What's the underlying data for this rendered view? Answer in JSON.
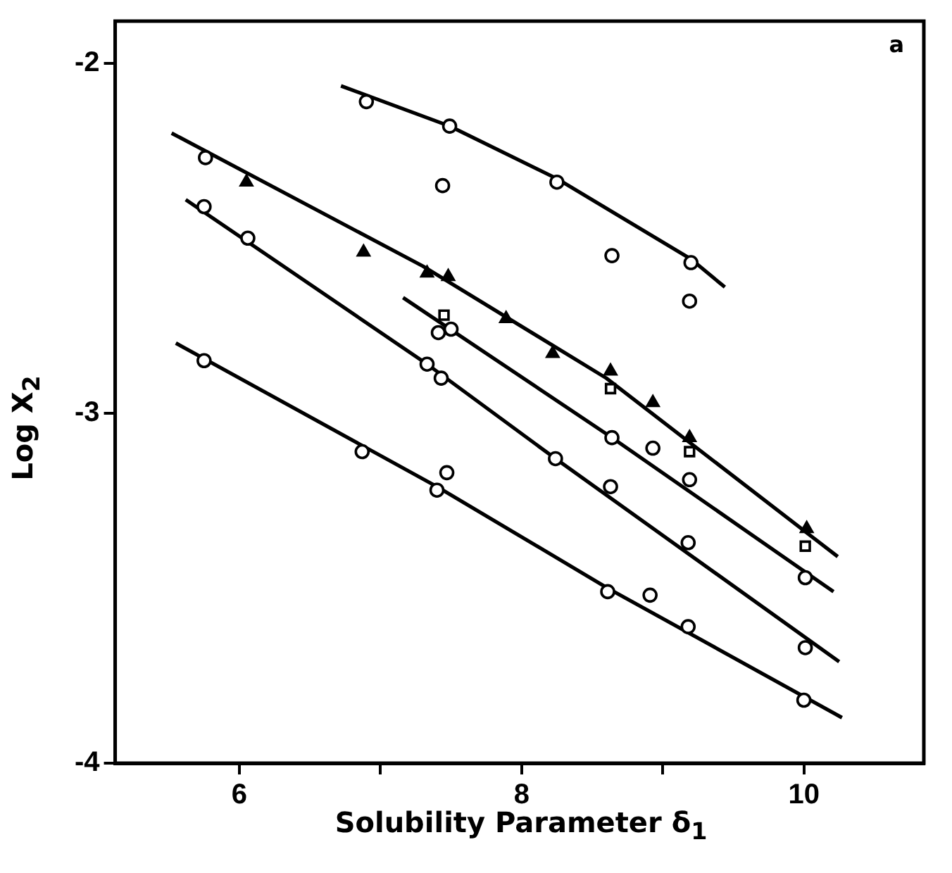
{
  "chart_data": {
    "type": "scatter",
    "xlabel": "Solubility Parameter δ$_{1}$",
    "ylabel": "Log X$_{2}$",
    "annotations": [
      "a"
    ],
    "xlim": [
      5.12,
      10.85
    ],
    "xticks": [
      6,
      {
        "value": 7,
        "label": null
      },
      8,
      {
        "value": 9,
        "label": null
      },
      10
    ],
    "ylim": [
      -4,
      -1.88
    ],
    "yticks": [
      -2,
      -3,
      -4
    ],
    "grid": false,
    "legend": false,
    "series": [
      {
        "type": "scatter",
        "marker": "circle",
        "color": "#000000",
        "x": [
          6.9,
          7.49,
          8.25,
          9.2,
          7.44,
          8.64,
          9.19
        ],
        "values": [
          -2.11,
          -2.18,
          -2.34,
          -2.57,
          -2.35,
          -2.55,
          -2.68
        ]
      },
      {
        "type": "scatter",
        "marker": "circle",
        "color": "#000000",
        "x": [
          5.76
        ],
        "values": [
          -2.27
        ]
      },
      {
        "type": "scatter",
        "marker": "triangle",
        "color": "#000000",
        "x": [
          6.05,
          6.88,
          7.33,
          7.48,
          7.89,
          8.22,
          8.63,
          8.93,
          9.19,
          10.02
        ],
        "values": [
          -2.34,
          -2.54,
          -2.6,
          -2.61,
          -2.73,
          -2.83,
          -2.88,
          -2.97,
          -3.07,
          -3.33
        ]
      },
      {
        "type": "scatter",
        "marker": "square",
        "color": "#000000",
        "x": [
          7.45,
          8.63,
          9.19,
          10.01
        ],
        "values": [
          -2.72,
          -2.93,
          -3.11,
          -3.38
        ]
      },
      {
        "type": "scatter",
        "marker": "circle",
        "color": "#000000",
        "x": [
          7.41,
          7.5,
          8.64,
          8.93,
          9.19,
          10.01
        ],
        "values": [
          -2.77,
          -2.76,
          -3.07,
          -3.1,
          -3.19,
          -3.47
        ]
      },
      {
        "type": "scatter",
        "marker": "circle",
        "color": "#000000",
        "x": [
          5.75,
          6.06,
          7.33,
          7.43,
          8.24,
          8.63,
          9.18,
          10.01
        ],
        "values": [
          -2.41,
          -2.5,
          -2.86,
          -2.9,
          -3.13,
          -3.21,
          -3.37,
          -3.67
        ]
      },
      {
        "type": "scatter",
        "marker": "circle",
        "color": "#000000",
        "x": [
          5.75,
          6.87,
          7.4,
          7.47,
          8.61,
          8.91,
          9.18,
          10.0
        ],
        "values": [
          -2.85,
          -3.11,
          -3.22,
          -3.17,
          -3.51,
          -3.52,
          -3.61,
          -3.82
        ]
      },
      {
        "type": "line",
        "marker": "none",
        "color": "#000000",
        "x": [
          6.72,
          7.49,
          8.25,
          9.2,
          9.44
        ],
        "values": [
          -2.065,
          -2.18,
          -2.33,
          -2.56,
          -2.64
        ]
      },
      {
        "type": "line",
        "marker": "none",
        "color": "#000000",
        "x": [
          5.52,
          7.3,
          8.6,
          10.24
        ],
        "values": [
          -2.2,
          -2.58,
          -2.9,
          -3.41
        ]
      },
      {
        "type": "line",
        "marker": "none",
        "color": "#000000",
        "x": [
          7.16,
          8.64,
          10.21
        ],
        "values": [
          -2.67,
          -3.07,
          -3.51
        ]
      },
      {
        "type": "line",
        "marker": "none",
        "color": "#000000",
        "x": [
          5.62,
          7.33,
          8.24,
          10.25
        ],
        "values": [
          -2.39,
          -2.86,
          -3.13,
          -3.71
        ]
      },
      {
        "type": "line",
        "marker": "none",
        "color": "#000000",
        "x": [
          5.55,
          7.4,
          8.61,
          10.27
        ],
        "values": [
          -2.8,
          -3.21,
          -3.5,
          -3.87
        ]
      }
    ]
  }
}
